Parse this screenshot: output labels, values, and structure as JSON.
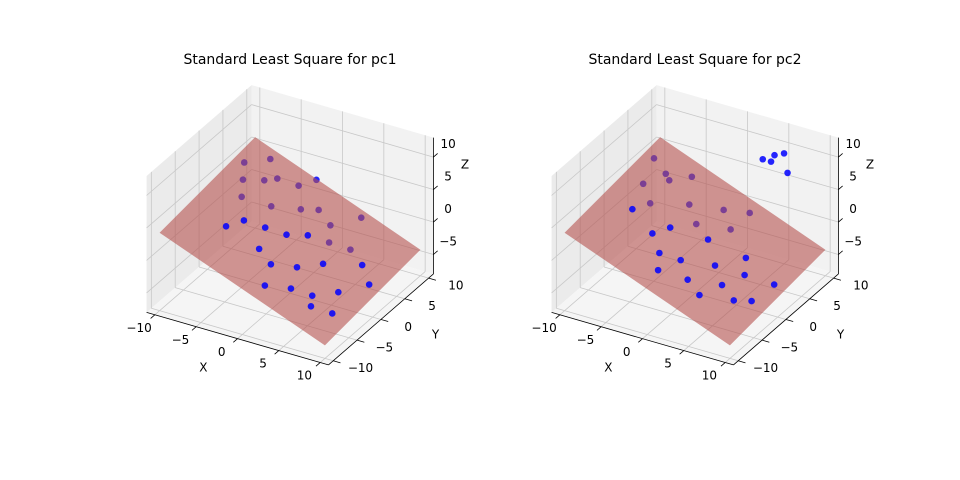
{
  "chart_data": [
    {
      "type": "scatter3d",
      "title": "Standard Least Square for pc1",
      "xlabel": "X",
      "ylabel": "Y",
      "zlabel": "Z",
      "xlim": [
        -11,
        11
      ],
      "ylim": [
        -11,
        11
      ],
      "zlim": [
        -8,
        13
      ],
      "xticks": [
        {
          "value": -10,
          "label": "−10"
        },
        {
          "value": -5,
          "label": "−5"
        },
        0,
        5,
        10
      ],
      "yticks": [
        {
          "value": -10,
          "label": "−10"
        },
        {
          "value": -5,
          "label": "−5"
        },
        0,
        5,
        10
      ],
      "zticks": [
        {
          "value": -5,
          "label": "−5"
        },
        0,
        5,
        10
      ],
      "grid": true,
      "surface": {
        "color": "#b5524f",
        "x": [
          -10,
          10
        ],
        "y": [
          -10,
          10
        ],
        "z": [
          [
            4,
            6
          ],
          [
            -6,
            -4
          ]
        ]
      },
      "series": [
        {
          "color": "#0000ff",
          "x": [
            -9,
            -8,
            -7,
            -7,
            -6,
            -5,
            -5,
            -4,
            -3,
            -3,
            -2,
            -1,
            -1,
            0,
            0,
            1,
            2,
            2,
            3,
            3,
            4,
            5,
            5,
            6,
            7,
            7,
            8,
            9,
            -6,
            -2,
            1,
            4
          ],
          "y": [
            6,
            4,
            8,
            2,
            5,
            -1,
            6,
            3,
            0,
            7,
            -3,
            4,
            1,
            -4,
            6,
            2,
            -2,
            5,
            -5,
            3,
            0,
            -4,
            4,
            -6,
            -2,
            3,
            -5,
            1,
            -3,
            9,
            -7,
            8
          ],
          "z": [
            5,
            4,
            5,
            3,
            4,
            2,
            4,
            2,
            1,
            3,
            0,
            2,
            0,
            -1,
            1,
            0,
            -2,
            0,
            -3,
            -1,
            -2,
            -4,
            -2,
            -4,
            -4,
            -3,
            -5,
            -4,
            2,
            3,
            -2,
            0
          ]
        }
      ]
    },
    {
      "type": "scatter3d",
      "title": "Standard Least Square for pc2",
      "xlabel": "X",
      "ylabel": "Y",
      "zlabel": "Z",
      "xlim": [
        -11,
        11
      ],
      "ylim": [
        -11,
        11
      ],
      "zlim": [
        -8,
        13
      ],
      "xticks": [
        {
          "value": -10,
          "label": "−10"
        },
        {
          "value": -5,
          "label": "−5"
        },
        0,
        5,
        10
      ],
      "yticks": [
        {
          "value": -10,
          "label": "−10"
        },
        {
          "value": -5,
          "label": "−5"
        },
        0,
        5,
        10
      ],
      "zticks": [
        {
          "value": -5,
          "label": "−5"
        },
        0,
        5,
        10
      ],
      "grid": true,
      "surface": {
        "color": "#b5524f",
        "x": [
          -10,
          10
        ],
        "y": [
          -10,
          10
        ],
        "z": [
          [
            4,
            6
          ],
          [
            -6,
            -4
          ]
        ]
      },
      "series": [
        {
          "color": "#0000ff",
          "x": [
            -9,
            -8,
            -7,
            -6,
            -6,
            -5,
            -4,
            -3,
            -3,
            -2,
            -1,
            0,
            0,
            1,
            2,
            2,
            3,
            4,
            5,
            5,
            6,
            7,
            8,
            9,
            -7,
            -1,
            2,
            4,
            5,
            6,
            5,
            3
          ],
          "y": [
            7,
            3,
            6,
            1,
            5,
            8,
            -2,
            4,
            0,
            -4,
            2,
            6,
            -3,
            1,
            -5,
            4,
            -1,
            -6,
            2,
            -3,
            0,
            -4,
            -2,
            1,
            -1,
            -6,
            8,
            9,
            10,
            9,
            8,
            9
          ],
          "z": [
            5,
            4,
            4,
            3,
            4,
            3,
            1,
            2,
            1,
            0,
            1,
            1,
            -1,
            0,
            -2,
            0,
            -2,
            -3,
            -2,
            -3,
            -3,
            -4,
            -5,
            -4,
            3,
            -1,
            0,
            8,
            9,
            7,
            10,
            8
          ]
        }
      ]
    }
  ]
}
